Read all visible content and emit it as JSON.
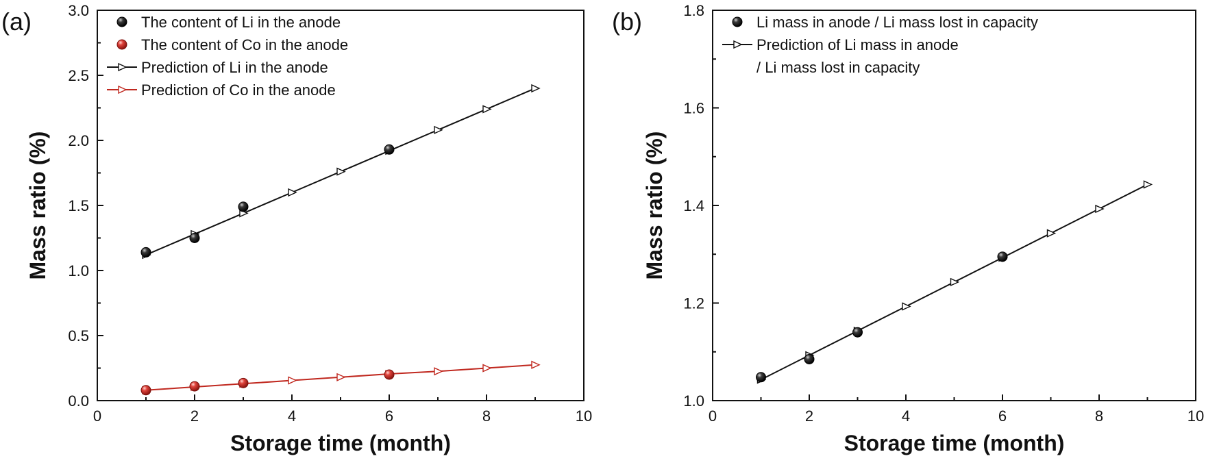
{
  "chart_data": [
    {
      "panel": "(a)",
      "type": "scatter",
      "xlabel": "Storage time (month)",
      "ylabel": "Mass ratio (%)",
      "xlim": [
        0,
        10
      ],
      "ylim": [
        0,
        3.0
      ],
      "x_ticks": [
        "0",
        "2",
        "4",
        "6",
        "8",
        "10"
      ],
      "y_ticks": [
        "0.0",
        "0.5",
        "1.0",
        "1.5",
        "2.0",
        "2.5",
        "3.0"
      ],
      "legend_position": "top-left",
      "series": [
        {
          "name": "The content of Li in the anode",
          "kind": "points",
          "color": "#1a1a1a",
          "x": [
            1,
            2,
            3,
            6
          ],
          "y": [
            1.14,
            1.25,
            1.49,
            1.93
          ]
        },
        {
          "name": "The content of Co in the anode",
          "kind": "points",
          "color": "#d0302a",
          "x": [
            1,
            2,
            3,
            6
          ],
          "y": [
            0.08,
            0.11,
            0.135,
            0.2
          ]
        },
        {
          "name": "Prediction of Li in the anode",
          "kind": "line",
          "color": "#111111",
          "x": [
            1,
            2,
            3,
            4,
            5,
            6,
            7,
            8,
            9
          ],
          "y": [
            1.12,
            1.28,
            1.44,
            1.6,
            1.76,
            1.92,
            2.08,
            2.24,
            2.4
          ]
        },
        {
          "name": "Prediction of Co in the anode",
          "kind": "line",
          "color": "#c0281f",
          "x": [
            1,
            2,
            3,
            4,
            5,
            6,
            7,
            8,
            9
          ],
          "y": [
            0.08,
            0.105,
            0.13,
            0.155,
            0.18,
            0.205,
            0.225,
            0.25,
            0.275
          ]
        }
      ]
    },
    {
      "panel": "(b)",
      "type": "scatter",
      "xlabel": "Storage time (month)",
      "ylabel": "Mass ratio (%)",
      "xlim": [
        0,
        10
      ],
      "ylim": [
        1.0,
        1.8
      ],
      "x_ticks": [
        "0",
        "2",
        "4",
        "6",
        "8",
        "10"
      ],
      "y_ticks": [
        "1.0",
        "1.2",
        "1.4",
        "1.6",
        "1.8"
      ],
      "legend_position": "top-left",
      "series": [
        {
          "name": "Li mass in anode / Li mass lost in capacity",
          "kind": "points",
          "color": "#1a1a1a",
          "x": [
            1,
            2,
            3,
            6
          ],
          "y": [
            1.048,
            1.085,
            1.14,
            1.295
          ]
        },
        {
          "name": "Prediction of Li mass in anode / Li mass lost in capacity",
          "kind": "line",
          "color": "#111111",
          "legend_lines": [
            "Prediction of Li mass in anode",
            "/ Li mass lost in capacity"
          ],
          "x": [
            1,
            2,
            3,
            4,
            5,
            6,
            7,
            8,
            9
          ],
          "y": [
            1.043,
            1.093,
            1.143,
            1.193,
            1.243,
            1.293,
            1.343,
            1.393,
            1.443
          ]
        }
      ]
    }
  ]
}
